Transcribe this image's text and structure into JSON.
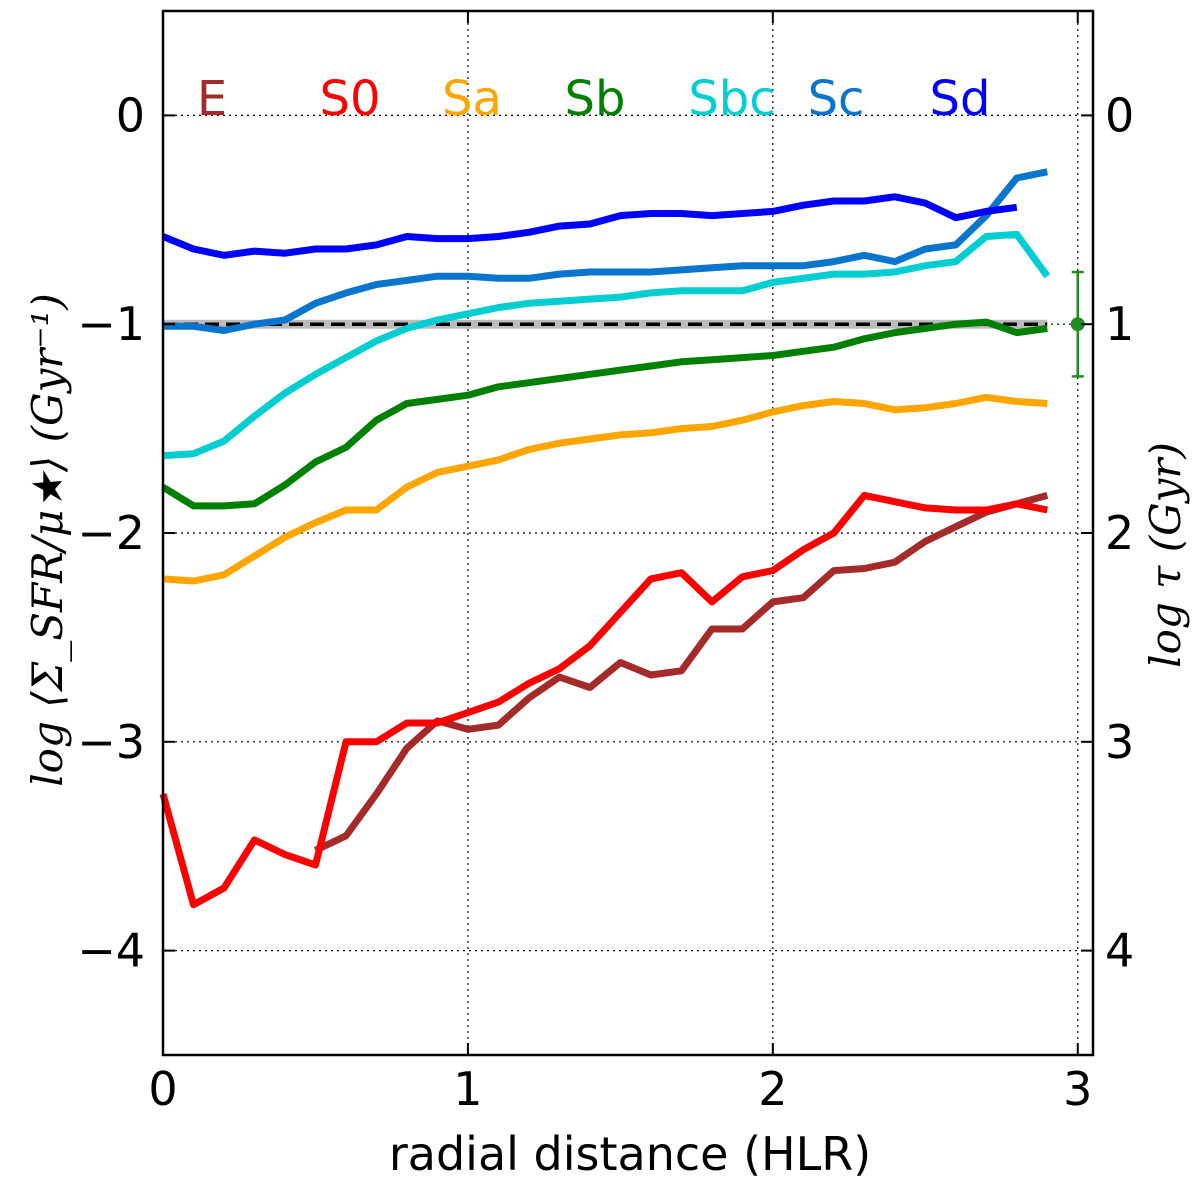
{
  "chart_data": {
    "type": "line",
    "title": "",
    "xlabel": "radial distance (HLR)",
    "ylabel": "log ⟨Σ_SFR/μ★⟩ (Gyr⁻¹)",
    "ylabel_right": "log τ (Gyr)",
    "xlim": [
      0,
      3.05
    ],
    "ylim": [
      -4.5,
      0.5
    ],
    "x_ticks": [
      0,
      1,
      2,
      3
    ],
    "x_tick_labels": [
      "0",
      "1",
      "2",
      "3"
    ],
    "y_ticks": [
      0,
      -1,
      -2,
      -3,
      -4
    ],
    "y_tick_labels": [
      "0",
      "−1",
      "−2",
      "−3",
      "−4"
    ],
    "y_right_ticks": [
      0,
      -1,
      -2,
      -3,
      -4
    ],
    "y_right_tick_labels": [
      "0",
      "1",
      "2",
      "3",
      "4"
    ],
    "grid": true,
    "reference_line": {
      "y": -1.0,
      "style": "dashed"
    },
    "error_bar": {
      "x": 3.0,
      "y": -1.0,
      "yerr_low": 0.25,
      "yerr_high": 0.25,
      "color": "#228B22"
    },
    "legend_position": "top",
    "series": [
      {
        "name": "E",
        "color": "#A52A2A",
        "x": [
          0.5,
          0.6,
          0.7,
          0.8,
          0.9,
          1.0,
          1.1,
          1.2,
          1.3,
          1.4,
          1.5,
          1.6,
          1.7,
          1.8,
          1.9,
          2.0,
          2.1,
          2.2,
          2.3,
          2.4,
          2.5,
          2.6,
          2.7,
          2.8,
          2.9
        ],
        "y": [
          -3.52,
          -3.45,
          -3.25,
          -3.03,
          -2.9,
          -2.94,
          -2.92,
          -2.79,
          -2.69,
          -2.74,
          -2.62,
          -2.68,
          -2.66,
          -2.46,
          -2.46,
          -2.33,
          -2.31,
          -2.18,
          -2.17,
          -2.14,
          -2.04,
          -1.97,
          -1.9,
          -1.86,
          -1.82
        ]
      },
      {
        "name": "S0",
        "color": "#FF0000",
        "x": [
          0.0,
          0.1,
          0.2,
          0.3,
          0.4,
          0.5,
          0.6,
          0.7,
          0.8,
          0.9,
          1.0,
          1.1,
          1.2,
          1.3,
          1.4,
          1.5,
          1.6,
          1.7,
          1.8,
          1.9,
          2.0,
          2.1,
          2.2,
          2.3,
          2.4,
          2.5,
          2.6,
          2.7,
          2.8,
          2.9
        ],
        "y": [
          -3.25,
          -3.78,
          -3.7,
          -3.47,
          -3.54,
          -3.59,
          -3.0,
          -3.0,
          -2.91,
          -2.91,
          -2.86,
          -2.81,
          -2.72,
          -2.65,
          -2.54,
          -2.38,
          -2.22,
          -2.19,
          -2.33,
          -2.21,
          -2.18,
          -2.08,
          -2.0,
          -1.82,
          -1.85,
          -1.88,
          -1.89,
          -1.89,
          -1.86,
          -1.89
        ]
      },
      {
        "name": "Sa",
        "color": "#FFA500",
        "x": [
          0.0,
          0.1,
          0.2,
          0.3,
          0.4,
          0.5,
          0.6,
          0.7,
          0.8,
          0.9,
          1.0,
          1.1,
          1.2,
          1.3,
          1.4,
          1.5,
          1.6,
          1.7,
          1.8,
          1.9,
          2.0,
          2.1,
          2.2,
          2.3,
          2.4,
          2.5,
          2.6,
          2.7,
          2.8,
          2.9
        ],
        "y": [
          -2.22,
          -2.23,
          -2.2,
          -2.11,
          -2.02,
          -1.95,
          -1.89,
          -1.89,
          -1.78,
          -1.71,
          -1.68,
          -1.65,
          -1.6,
          -1.57,
          -1.55,
          -1.53,
          -1.52,
          -1.5,
          -1.49,
          -1.46,
          -1.42,
          -1.39,
          -1.37,
          -1.38,
          -1.41,
          -1.4,
          -1.38,
          -1.35,
          -1.37,
          -1.38
        ]
      },
      {
        "name": "Sb",
        "color": "#008000",
        "x": [
          0.0,
          0.1,
          0.2,
          0.3,
          0.4,
          0.5,
          0.6,
          0.7,
          0.8,
          0.9,
          1.0,
          1.1,
          1.2,
          1.3,
          1.4,
          1.5,
          1.6,
          1.7,
          1.8,
          1.9,
          2.0,
          2.1,
          2.2,
          2.3,
          2.4,
          2.5,
          2.6,
          2.7,
          2.8,
          2.9
        ],
        "y": [
          -1.78,
          -1.87,
          -1.87,
          -1.86,
          -1.77,
          -1.66,
          -1.59,
          -1.46,
          -1.38,
          -1.36,
          -1.34,
          -1.3,
          -1.28,
          -1.26,
          -1.24,
          -1.22,
          -1.2,
          -1.18,
          -1.17,
          -1.16,
          -1.15,
          -1.13,
          -1.11,
          -1.07,
          -1.04,
          -1.02,
          -1.0,
          -0.99,
          -1.04,
          -1.02
        ]
      },
      {
        "name": "Sbc",
        "color": "#00CED1",
        "x": [
          0.0,
          0.1,
          0.2,
          0.3,
          0.4,
          0.5,
          0.6,
          0.7,
          0.8,
          0.9,
          1.0,
          1.1,
          1.2,
          1.3,
          1.4,
          1.5,
          1.6,
          1.7,
          1.8,
          1.9,
          2.0,
          2.1,
          2.2,
          2.3,
          2.4,
          2.5,
          2.6,
          2.7,
          2.8,
          2.9
        ],
        "y": [
          -1.63,
          -1.62,
          -1.56,
          -1.44,
          -1.33,
          -1.24,
          -1.16,
          -1.08,
          -1.02,
          -0.98,
          -0.95,
          -0.92,
          -0.9,
          -0.89,
          -0.88,
          -0.87,
          -0.85,
          -0.84,
          -0.84,
          -0.84,
          -0.8,
          -0.78,
          -0.76,
          -0.76,
          -0.75,
          -0.72,
          -0.7,
          -0.58,
          -0.57,
          -0.77
        ]
      },
      {
        "name": "Sc",
        "color": "#0A75CC",
        "x": [
          0.0,
          0.1,
          0.2,
          0.3,
          0.4,
          0.5,
          0.6,
          0.7,
          0.8,
          0.9,
          1.0,
          1.1,
          1.2,
          1.3,
          1.4,
          1.5,
          1.6,
          1.7,
          1.8,
          1.9,
          2.0,
          2.1,
          2.2,
          2.3,
          2.4,
          2.5,
          2.6,
          2.7,
          2.8,
          2.9
        ],
        "y": [
          -1.01,
          -1.01,
          -1.03,
          -1.0,
          -0.98,
          -0.9,
          -0.85,
          -0.81,
          -0.79,
          -0.77,
          -0.77,
          -0.78,
          -0.78,
          -0.76,
          -0.75,
          -0.75,
          -0.75,
          -0.74,
          -0.73,
          -0.72,
          -0.72,
          -0.72,
          -0.7,
          -0.67,
          -0.7,
          -0.64,
          -0.62,
          -0.48,
          -0.3,
          -0.27
        ]
      },
      {
        "name": "Sd",
        "color": "#0000FF",
        "x": [
          0.0,
          0.1,
          0.2,
          0.3,
          0.4,
          0.5,
          0.6,
          0.7,
          0.8,
          0.9,
          1.0,
          1.1,
          1.2,
          1.3,
          1.4,
          1.5,
          1.6,
          1.7,
          1.8,
          1.9,
          2.0,
          2.1,
          2.2,
          2.3,
          2.4,
          2.5,
          2.6,
          2.7,
          2.8
        ],
        "y": [
          -0.58,
          -0.64,
          -0.67,
          -0.65,
          -0.66,
          -0.64,
          -0.64,
          -0.62,
          -0.58,
          -0.59,
          -0.59,
          -0.58,
          -0.56,
          -0.53,
          -0.52,
          -0.48,
          -0.47,
          -0.47,
          -0.48,
          -0.47,
          -0.46,
          -0.43,
          -0.41,
          -0.41,
          -0.39,
          -0.42,
          -0.49,
          -0.46,
          -0.44
        ]
      }
    ]
  }
}
